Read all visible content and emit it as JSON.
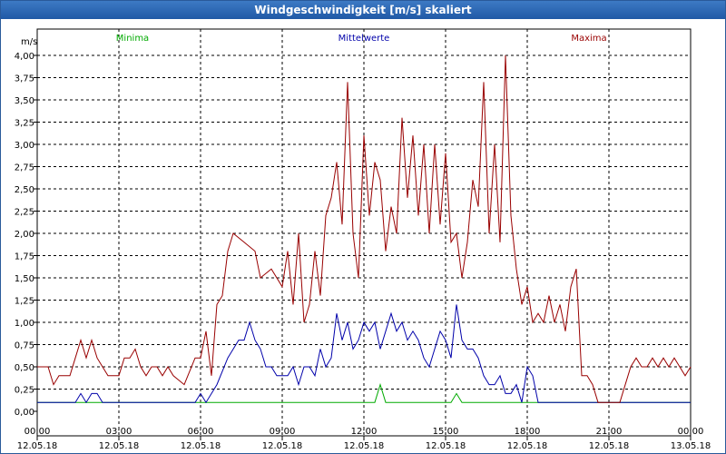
{
  "window": {
    "title": "Windgeschwindigkeit [m/s] skaliert"
  },
  "chart_data": {
    "type": "line",
    "title": "Windgeschwindigkeit [m/s] skaliert",
    "ylabel": "m/s",
    "ylim": [
      0,
      4
    ],
    "xlim_hours": [
      0,
      24
    ],
    "grid": true,
    "legend_placement": "top",
    "y_ticks": [
      "0,00",
      "0,25",
      "0,50",
      "0,75",
      "1,00",
      "1,25",
      "1,50",
      "1,75",
      "2,00",
      "2,25",
      "2,50",
      "2,75",
      "3,00",
      "3,25",
      "3,50",
      "3,75",
      "4,00"
    ],
    "x_ticks": [
      {
        "time": "00:00",
        "date": "12.05.18"
      },
      {
        "time": "03:00",
        "date": "12.05.18"
      },
      {
        "time": "06:00",
        "date": "12.05.18"
      },
      {
        "time": "09:00",
        "date": "12.05.18"
      },
      {
        "time": "12:00",
        "date": "12.05.18"
      },
      {
        "time": "15:00",
        "date": "12.05.18"
      },
      {
        "time": "18:00",
        "date": "12.05.18"
      },
      {
        "time": "21:00",
        "date": "12.05.18"
      },
      {
        "time": "00:00",
        "date": "13.05.18"
      }
    ],
    "series": [
      {
        "name": "Minima",
        "color": "#00aa00",
        "points": [
          [
            0,
            0.1
          ],
          [
            12.4,
            0.1
          ],
          [
            12.6,
            0.3
          ],
          [
            12.8,
            0.1
          ],
          [
            15.2,
            0.1
          ],
          [
            15.4,
            0.2
          ],
          [
            15.6,
            0.1
          ],
          [
            24,
            0.1
          ]
        ]
      },
      {
        "name": "Mittelwerte",
        "color": "#0000aa",
        "points": [
          [
            0,
            0.1
          ],
          [
            1.4,
            0.1
          ],
          [
            1.6,
            0.2
          ],
          [
            1.8,
            0.1
          ],
          [
            2,
            0.2
          ],
          [
            2.2,
            0.2
          ],
          [
            2.4,
            0.1
          ],
          [
            5.8,
            0.1
          ],
          [
            6,
            0.2
          ],
          [
            6.2,
            0.1
          ],
          [
            6.6,
            0.3
          ],
          [
            7,
            0.6
          ],
          [
            7.4,
            0.8
          ],
          [
            7.6,
            0.8
          ],
          [
            7.8,
            1.0
          ],
          [
            8,
            0.8
          ],
          [
            8.2,
            0.7
          ],
          [
            8.4,
            0.5
          ],
          [
            8.6,
            0.5
          ],
          [
            8.8,
            0.4
          ],
          [
            9.2,
            0.4
          ],
          [
            9.4,
            0.5
          ],
          [
            9.6,
            0.3
          ],
          [
            9.8,
            0.5
          ],
          [
            10,
            0.5
          ],
          [
            10.2,
            0.4
          ],
          [
            10.4,
            0.7
          ],
          [
            10.6,
            0.5
          ],
          [
            10.8,
            0.6
          ],
          [
            11,
            1.1
          ],
          [
            11.2,
            0.8
          ],
          [
            11.4,
            1.0
          ],
          [
            11.6,
            0.7
          ],
          [
            11.8,
            0.8
          ],
          [
            12,
            1.0
          ],
          [
            12.2,
            0.9
          ],
          [
            12.4,
            1.0
          ],
          [
            12.6,
            0.7
          ],
          [
            12.8,
            0.9
          ],
          [
            13,
            1.1
          ],
          [
            13.2,
            0.9
          ],
          [
            13.4,
            1.0
          ],
          [
            13.6,
            0.8
          ],
          [
            13.8,
            0.9
          ],
          [
            14,
            0.8
          ],
          [
            14.2,
            0.6
          ],
          [
            14.4,
            0.5
          ],
          [
            14.6,
            0.7
          ],
          [
            14.8,
            0.9
          ],
          [
            15,
            0.8
          ],
          [
            15.2,
            0.6
          ],
          [
            15.4,
            1.2
          ],
          [
            15.6,
            0.8
          ],
          [
            15.8,
            0.7
          ],
          [
            16,
            0.7
          ],
          [
            16.2,
            0.6
          ],
          [
            16.4,
            0.4
          ],
          [
            16.6,
            0.3
          ],
          [
            16.8,
            0.3
          ],
          [
            17,
            0.4
          ],
          [
            17.2,
            0.2
          ],
          [
            17.4,
            0.2
          ],
          [
            17.6,
            0.3
          ],
          [
            17.8,
            0.1
          ],
          [
            18,
            0.5
          ],
          [
            18.2,
            0.4
          ],
          [
            18.4,
            0.1
          ],
          [
            24,
            0.1
          ]
        ]
      },
      {
        "name": "Maxima",
        "color": "#990000",
        "points": [
          [
            0,
            0.5
          ],
          [
            0.4,
            0.5
          ],
          [
            0.6,
            0.3
          ],
          [
            0.8,
            0.4
          ],
          [
            1.2,
            0.4
          ],
          [
            1.4,
            0.6
          ],
          [
            1.6,
            0.8
          ],
          [
            1.8,
            0.6
          ],
          [
            2,
            0.8
          ],
          [
            2.2,
            0.6
          ],
          [
            2.4,
            0.5
          ],
          [
            2.6,
            0.4
          ],
          [
            3,
            0.4
          ],
          [
            3.2,
            0.6
          ],
          [
            3.4,
            0.6
          ],
          [
            3.6,
            0.7
          ],
          [
            3.8,
            0.5
          ],
          [
            4,
            0.4
          ],
          [
            4.2,
            0.5
          ],
          [
            4.4,
            0.5
          ],
          [
            4.6,
            0.4
          ],
          [
            4.8,
            0.5
          ],
          [
            5,
            0.4
          ],
          [
            5.4,
            0.3
          ],
          [
            5.8,
            0.6
          ],
          [
            6,
            0.6
          ],
          [
            6.2,
            0.9
          ],
          [
            6.4,
            0.4
          ],
          [
            6.6,
            1.2
          ],
          [
            6.8,
            1.3
          ],
          [
            7,
            1.8
          ],
          [
            7.2,
            2.0
          ],
          [
            7.6,
            1.9
          ],
          [
            8,
            1.8
          ],
          [
            8.2,
            1.5
          ],
          [
            8.6,
            1.6
          ],
          [
            9,
            1.4
          ],
          [
            9.2,
            1.8
          ],
          [
            9.4,
            1.2
          ],
          [
            9.6,
            2.0
          ],
          [
            9.8,
            1.0
          ],
          [
            10,
            1.2
          ],
          [
            10.2,
            1.8
          ],
          [
            10.4,
            1.3
          ],
          [
            10.6,
            2.2
          ],
          [
            10.8,
            2.4
          ],
          [
            11,
            2.8
          ],
          [
            11.2,
            2.1
          ],
          [
            11.4,
            3.7
          ],
          [
            11.6,
            2.0
          ],
          [
            11.8,
            1.5
          ],
          [
            12,
            3.1
          ],
          [
            12.2,
            2.2
          ],
          [
            12.4,
            2.8
          ],
          [
            12.6,
            2.6
          ],
          [
            12.8,
            1.8
          ],
          [
            13,
            2.3
          ],
          [
            13.2,
            2.0
          ],
          [
            13.4,
            3.3
          ],
          [
            13.6,
            2.4
          ],
          [
            13.8,
            3.1
          ],
          [
            14,
            2.2
          ],
          [
            14.2,
            3.0
          ],
          [
            14.4,
            2.0
          ],
          [
            14.6,
            3.0
          ],
          [
            14.8,
            2.1
          ],
          [
            15,
            2.9
          ],
          [
            15.2,
            1.9
          ],
          [
            15.4,
            2.0
          ],
          [
            15.6,
            1.5
          ],
          [
            15.8,
            1.9
          ],
          [
            16,
            2.6
          ],
          [
            16.2,
            2.3
          ],
          [
            16.4,
            3.7
          ],
          [
            16.6,
            2.0
          ],
          [
            16.8,
            3.0
          ],
          [
            17,
            1.9
          ],
          [
            17.2,
            4.0
          ],
          [
            17.4,
            2.2
          ],
          [
            17.6,
            1.6
          ],
          [
            17.8,
            1.2
          ],
          [
            18,
            1.4
          ],
          [
            18.2,
            1.0
          ],
          [
            18.4,
            1.1
          ],
          [
            18.6,
            1.0
          ],
          [
            18.8,
            1.3
          ],
          [
            19,
            1.0
          ],
          [
            19.2,
            1.2
          ],
          [
            19.4,
            0.9
          ],
          [
            19.6,
            1.4
          ],
          [
            19.8,
            1.6
          ],
          [
            20,
            0.4
          ],
          [
            20.2,
            0.4
          ],
          [
            20.4,
            0.3
          ],
          [
            20.6,
            0.1
          ],
          [
            21.4,
            0.1
          ],
          [
            21.8,
            0.5
          ],
          [
            22,
            0.6
          ],
          [
            22.2,
            0.5
          ],
          [
            22.4,
            0.5
          ],
          [
            22.6,
            0.6
          ],
          [
            22.8,
            0.5
          ],
          [
            23,
            0.6
          ],
          [
            23.2,
            0.5
          ],
          [
            23.4,
            0.6
          ],
          [
            23.6,
            0.5
          ],
          [
            23.8,
            0.4
          ],
          [
            24,
            0.5
          ]
        ]
      }
    ]
  }
}
